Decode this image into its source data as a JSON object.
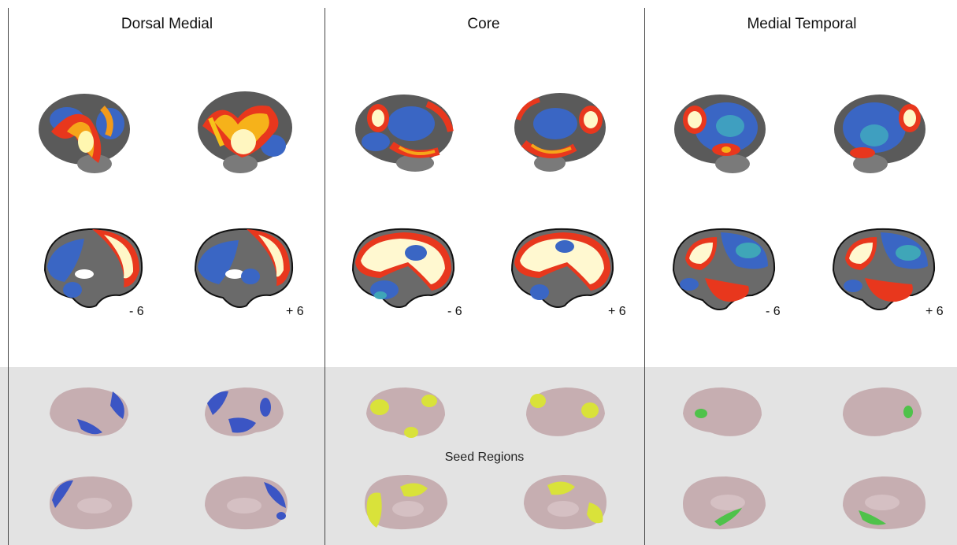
{
  "columns": [
    {
      "title": "Dorsal Medial",
      "scheme": "dm"
    },
    {
      "title": "Core",
      "scheme": "core"
    },
    {
      "title": "Medial Temporal",
      "scheme": "mt"
    }
  ],
  "slice_labels": {
    "left": "- 6",
    "right": "+ 6"
  },
  "seed_label": "Seed Regions",
  "colors": {
    "seed_band": "#e3e3e3",
    "seed_dorsal_medial": "#3b55c4",
    "seed_core": "#d9e23a",
    "seed_medial_temporal": "#4fc24a",
    "brain_surface": "#c6aeb1"
  }
}
